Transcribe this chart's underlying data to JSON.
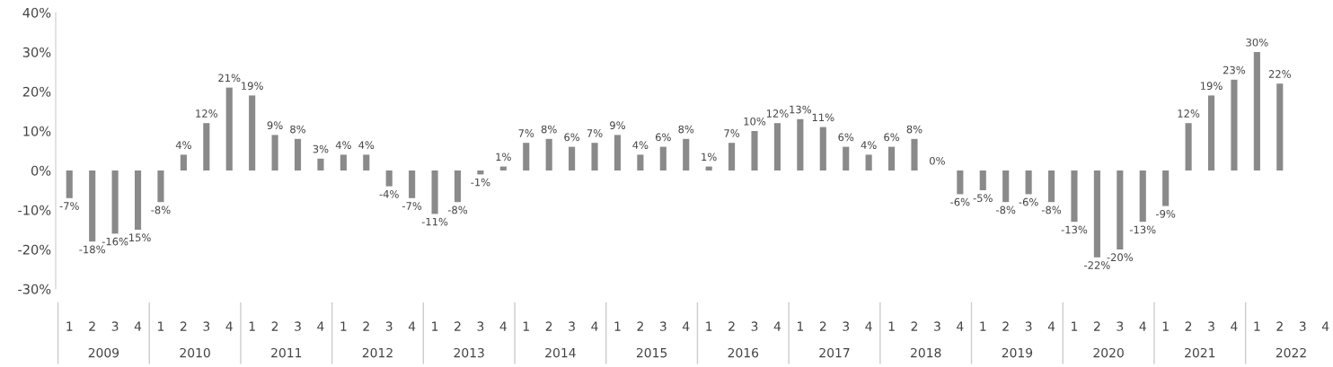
{
  "chart_data": {
    "type": "bar",
    "categories": [
      "1",
      "2",
      "3",
      "4",
      "1",
      "2",
      "3",
      "4",
      "1",
      "2",
      "3",
      "4",
      "1",
      "2",
      "3",
      "4",
      "1",
      "2",
      "3",
      "4",
      "1",
      "2",
      "3",
      "4",
      "1",
      "2",
      "3",
      "4",
      "1",
      "2",
      "3",
      "4",
      "1",
      "2",
      "3",
      "4",
      "1",
      "2",
      "3",
      "4",
      "1",
      "2",
      "3",
      "4",
      "1",
      "2",
      "3",
      "4",
      "1",
      "2",
      "3",
      "4",
      "1",
      "2",
      "3",
      "4"
    ],
    "values": [
      -7,
      -18,
      -16,
      -15,
      -8,
      4,
      12,
      21,
      19,
      9,
      8,
      3,
      4,
      4,
      -4,
      -7,
      -11,
      -8,
      -1,
      1,
      7,
      8,
      6,
      7,
      9,
      4,
      6,
      8,
      1,
      7,
      10,
      12,
      13,
      11,
      6,
      4,
      6,
      8,
      0,
      -6,
      -5,
      -8,
      -6,
      -8,
      -13,
      -22,
      -20,
      -13,
      -9,
      12,
      19,
      23,
      30,
      22,
      null,
      null
    ],
    "value_labels": [
      "-7%",
      "-18%",
      "-16%",
      "-15%",
      "-8%",
      "4%",
      "12%",
      "21%",
      "19%",
      "9%",
      "8%",
      "3%",
      "4%",
      "4%",
      "-4%",
      "-7%",
      "-11%",
      "-8%",
      "-1%",
      "1%",
      "7%",
      "8%",
      "6%",
      "7%",
      "9%",
      "4%",
      "6%",
      "8%",
      "1%",
      "7%",
      "10%",
      "12%",
      "13%",
      "11%",
      "6%",
      "4%",
      "6%",
      "8%",
      "0%",
      "-6%",
      "-5%",
      "-8%",
      "-6%",
      "-8%",
      "-13%",
      "-22%",
      "-20%",
      "-13%",
      "-9%",
      "12%",
      "19%",
      "23%",
      "30%",
      "22%",
      null,
      null
    ],
    "color": "#8a8a8a",
    "annotations": [
      "2009",
      "2010",
      "2011",
      "2012",
      "2013",
      "2014",
      "2015",
      "2016",
      "2017",
      "2018",
      "2019",
      "2020",
      "2021",
      "2022"
    ],
    "ylim": [
      -30,
      40
    ],
    "yticks": [
      {
        "value": -30,
        "label": "-30%"
      },
      {
        "value": -20,
        "label": "-20%"
      },
      {
        "value": -10,
        "label": "-10%"
      },
      {
        "value": 0,
        "label": "0%"
      },
      {
        "value": 10,
        "label": "10%"
      },
      {
        "value": 20,
        "label": "20%"
      },
      {
        "value": 30,
        "label": "30%"
      },
      {
        "value": 40,
        "label": "40%"
      }
    ],
    "grid": false,
    "legend": false
  }
}
